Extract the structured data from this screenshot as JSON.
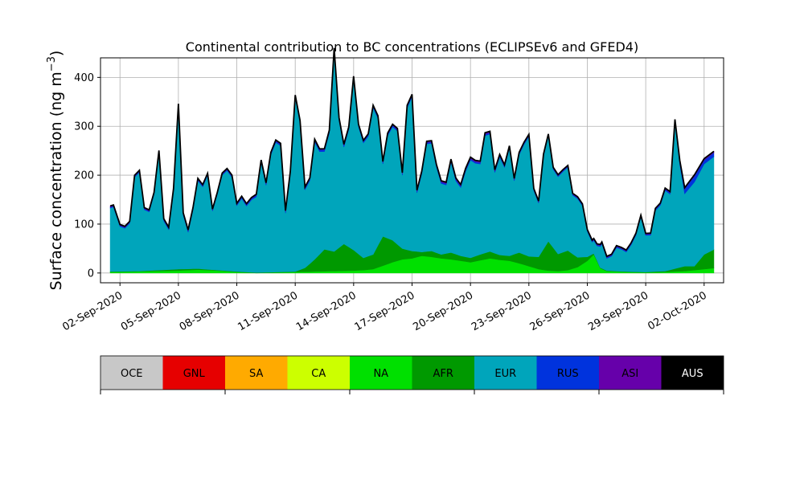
{
  "chart_data": {
    "type": "area",
    "stacked": true,
    "title": "Continental contribution to BC concentrations (ECLIPSEv6 and GFED4)",
    "ylabel": "Surface concentration (ng m",
    "ylabel_unit_exponent": "−3",
    "ylabel_close": ")",
    "xlabel": "",
    "ylim": [
      -20,
      440
    ],
    "xlim": [
      "2020-09-01",
      "2020-10-03"
    ],
    "grid": true,
    "yticks": [
      0,
      100,
      200,
      300,
      400
    ],
    "xtick_dates": [
      "2020-09-02",
      "2020-09-05",
      "2020-09-08",
      "2020-09-11",
      "2020-09-14",
      "2020-09-17",
      "2020-09-20",
      "2020-09-23",
      "2020-09-26",
      "2020-09-29",
      "2020-10-02"
    ],
    "xtick_labels": [
      "02-Sep-2020",
      "05-Sep-2020",
      "08-Sep-2020",
      "11-Sep-2020",
      "14-Sep-2020",
      "17-Sep-2020",
      "20-Sep-2020",
      "23-Sep-2020",
      "26-Sep-2020",
      "29-Sep-2020",
      "02-Oct-2020"
    ],
    "legend": {
      "placement": "bottom colorbar",
      "entries": [
        {
          "label": "OCE",
          "color": "#c8c8c8"
        },
        {
          "label": "GNL",
          "color": "#e60000"
        },
        {
          "label": "SA",
          "color": "#ffaa00"
        },
        {
          "label": "CA",
          "color": "#ccff00"
        },
        {
          "label": "NA",
          "color": "#00e000"
        },
        {
          "label": "AFR",
          "color": "#009900"
        },
        {
          "label": "EUR",
          "color": "#00a5bb"
        },
        {
          "label": "RUS",
          "color": "#0033dd"
        },
        {
          "label": "ASI",
          "color": "#6600aa"
        },
        {
          "label": "AUS",
          "color": "#000000"
        }
      ]
    },
    "series": [
      {
        "name": "NA",
        "color": "#00e000",
        "points": [
          [
            "2020-09-01T12:00",
            2
          ],
          [
            "2020-09-03",
            3
          ],
          [
            "2020-09-04",
            4
          ],
          [
            "2020-09-05",
            5
          ],
          [
            "2020-09-06",
            7
          ],
          [
            "2020-09-07",
            5
          ],
          [
            "2020-09-08",
            2
          ],
          [
            "2020-09-09",
            0
          ],
          [
            "2020-09-10",
            1
          ],
          [
            "2020-09-11",
            2
          ],
          [
            "2020-09-12",
            3
          ],
          [
            "2020-09-13",
            4
          ],
          [
            "2020-09-14",
            5
          ],
          [
            "2020-09-14T12:00",
            6
          ],
          [
            "2020-09-15",
            8
          ],
          [
            "2020-09-15T12:00",
            15
          ],
          [
            "2020-09-16",
            22
          ],
          [
            "2020-09-16T12:00",
            28
          ],
          [
            "2020-09-17",
            30
          ],
          [
            "2020-09-17T12:00",
            35
          ],
          [
            "2020-09-18",
            33
          ],
          [
            "2020-09-18T12:00",
            30
          ],
          [
            "2020-09-19",
            28
          ],
          [
            "2020-09-19T12:00",
            25
          ],
          [
            "2020-09-20",
            22
          ],
          [
            "2020-09-20T12:00",
            26
          ],
          [
            "2020-09-21",
            30
          ],
          [
            "2020-09-21T12:00",
            27
          ],
          [
            "2020-09-22",
            25
          ],
          [
            "2020-09-22T12:00",
            20
          ],
          [
            "2020-09-23",
            14
          ],
          [
            "2020-09-23T12:00",
            8
          ],
          [
            "2020-09-24",
            5
          ],
          [
            "2020-09-24T12:00",
            4
          ],
          [
            "2020-09-25",
            6
          ],
          [
            "2020-09-25T12:00",
            12
          ],
          [
            "2020-09-26",
            25
          ],
          [
            "2020-09-26T08:00",
            38
          ],
          [
            "2020-09-26T16:00",
            10
          ],
          [
            "2020-09-27",
            4
          ],
          [
            "2020-09-28",
            2
          ],
          [
            "2020-09-29",
            1
          ],
          [
            "2020-09-30",
            2
          ],
          [
            "2020-10-01",
            4
          ],
          [
            "2020-10-02",
            8
          ],
          [
            "2020-10-02T12:00",
            10
          ]
        ]
      },
      {
        "name": "AFR",
        "color": "#009900",
        "points": [
          [
            "2020-09-01T12:00",
            1
          ],
          [
            "2020-09-03",
            1
          ],
          [
            "2020-09-04",
            2
          ],
          [
            "2020-09-05",
            3
          ],
          [
            "2020-09-06",
            2
          ],
          [
            "2020-09-07",
            1
          ],
          [
            "2020-09-08",
            1
          ],
          [
            "2020-09-09",
            1
          ],
          [
            "2020-09-10",
            1
          ],
          [
            "2020-09-11",
            1
          ],
          [
            "2020-09-11T12:00",
            8
          ],
          [
            "2020-09-12",
            25
          ],
          [
            "2020-09-12T12:00",
            45
          ],
          [
            "2020-09-13",
            40
          ],
          [
            "2020-09-13T12:00",
            55
          ],
          [
            "2020-09-14",
            42
          ],
          [
            "2020-09-14T12:00",
            25
          ],
          [
            "2020-09-15",
            30
          ],
          [
            "2020-09-15T12:00",
            60
          ],
          [
            "2020-09-16",
            45
          ],
          [
            "2020-09-16T12:00",
            22
          ],
          [
            "2020-09-17",
            15
          ],
          [
            "2020-09-17T12:00",
            8
          ],
          [
            "2020-09-18",
            12
          ],
          [
            "2020-09-18T12:00",
            8
          ],
          [
            "2020-09-19",
            14
          ],
          [
            "2020-09-19T12:00",
            10
          ],
          [
            "2020-09-20",
            9
          ],
          [
            "2020-09-20T12:00",
            12
          ],
          [
            "2020-09-21",
            14
          ],
          [
            "2020-09-21T12:00",
            10
          ],
          [
            "2020-09-22",
            10
          ],
          [
            "2020-09-22T12:00",
            22
          ],
          [
            "2020-09-23",
            20
          ],
          [
            "2020-09-23T12:00",
            25
          ],
          [
            "2020-09-24",
            60
          ],
          [
            "2020-09-24T12:00",
            35
          ],
          [
            "2020-09-25",
            40
          ],
          [
            "2020-09-25T12:00",
            20
          ],
          [
            "2020-09-26",
            8
          ],
          [
            "2020-09-26T08:00",
            2
          ],
          [
            "2020-09-26T16:00",
            1
          ],
          [
            "2020-09-27",
            1
          ],
          [
            "2020-09-28",
            1
          ],
          [
            "2020-09-29",
            1
          ],
          [
            "2020-09-30",
            2
          ],
          [
            "2020-10-01",
            10
          ],
          [
            "2020-10-01T12:00",
            8
          ],
          [
            "2020-10-02",
            30
          ],
          [
            "2020-10-02T12:00",
            38
          ]
        ]
      },
      {
        "name": "EUR",
        "color": "#00a5bb",
        "points": [
          [
            "2020-09-01T12:00",
            130
          ],
          [
            "2020-09-01T16:00",
            132
          ],
          [
            "2020-09-02",
            92
          ],
          [
            "2020-09-02T06:00",
            88
          ],
          [
            "2020-09-02T12:00",
            98
          ],
          [
            "2020-09-02T18:00",
            192
          ],
          [
            "2020-09-03",
            202
          ],
          [
            "2020-09-03T06:00",
            125
          ],
          [
            "2020-09-03T12:00",
            120
          ],
          [
            "2020-09-03T18:00",
            155
          ],
          [
            "2020-09-04",
            240
          ],
          [
            "2020-09-04T06:00",
            100
          ],
          [
            "2020-09-04T12:00",
            82
          ],
          [
            "2020-09-04T18:00",
            160
          ],
          [
            "2020-09-05",
            333
          ],
          [
            "2020-09-05T06:00",
            110
          ],
          [
            "2020-09-05T12:00",
            75
          ],
          [
            "2020-09-05T18:00",
            120
          ],
          [
            "2020-09-06",
            180
          ],
          [
            "2020-09-06T06:00",
            168
          ],
          [
            "2020-09-06T12:00",
            192
          ],
          [
            "2020-09-06T18:00",
            120
          ],
          [
            "2020-09-07",
            155
          ],
          [
            "2020-09-07T06:00",
            195
          ],
          [
            "2020-09-07T12:00",
            205
          ],
          [
            "2020-09-07T18:00",
            192
          ],
          [
            "2020-09-08",
            135
          ],
          [
            "2020-09-08T06:00",
            150
          ],
          [
            "2020-09-08T12:00",
            135
          ],
          [
            "2020-09-08T18:00",
            148
          ],
          [
            "2020-09-09",
            155
          ],
          [
            "2020-09-09T06:00",
            225
          ],
          [
            "2020-09-09T12:00",
            178
          ],
          [
            "2020-09-09T18:00",
            240
          ],
          [
            "2020-09-10",
            265
          ],
          [
            "2020-09-10T06:00",
            258
          ],
          [
            "2020-09-10T12:00",
            120
          ],
          [
            "2020-09-10T18:00",
            200
          ],
          [
            "2020-09-11",
            356
          ],
          [
            "2020-09-11T06:00",
            300
          ],
          [
            "2020-09-11T12:00",
            160
          ],
          [
            "2020-09-11T18:00",
            170
          ],
          [
            "2020-09-12",
            240
          ],
          [
            "2020-09-12T06:00",
            210
          ],
          [
            "2020-09-12T12:00",
            200
          ],
          [
            "2020-09-12T18:00",
            240
          ],
          [
            "2020-09-13",
            410
          ],
          [
            "2020-09-13T06:00",
            260
          ],
          [
            "2020-09-13T12:00",
            198
          ],
          [
            "2020-09-13T18:00",
            240
          ],
          [
            "2020-09-14",
            350
          ],
          [
            "2020-09-14T06:00",
            260
          ],
          [
            "2020-09-14T12:00",
            235
          ],
          [
            "2020-09-14T18:00",
            245
          ],
          [
            "2020-09-15",
            300
          ],
          [
            "2020-09-15T06:00",
            260
          ],
          [
            "2020-09-15T12:00",
            148
          ],
          [
            "2020-09-15T18:00",
            210
          ],
          [
            "2020-09-16",
            232
          ],
          [
            "2020-09-16T06:00",
            232
          ],
          [
            "2020-09-16T12:00",
            150
          ],
          [
            "2020-09-16T18:00",
            290
          ],
          [
            "2020-09-17",
            315
          ],
          [
            "2020-09-17T06:00",
            120
          ],
          [
            "2020-09-17T12:00",
            160
          ],
          [
            "2020-09-17T18:00",
            220
          ],
          [
            "2020-09-18",
            220
          ],
          [
            "2020-09-18T06:00",
            175
          ],
          [
            "2020-09-18T12:00",
            145
          ],
          [
            "2020-09-18T18:00",
            140
          ],
          [
            "2020-09-19",
            185
          ],
          [
            "2020-09-19T06:00",
            150
          ],
          [
            "2020-09-19T12:00",
            140
          ],
          [
            "2020-09-19T18:00",
            175
          ],
          [
            "2020-09-20",
            200
          ],
          [
            "2020-09-20T06:00",
            190
          ],
          [
            "2020-09-20T12:00",
            185
          ],
          [
            "2020-09-20T18:00",
            240
          ],
          [
            "2020-09-21",
            240
          ],
          [
            "2020-09-21T06:00",
            165
          ],
          [
            "2020-09-21T12:00",
            200
          ],
          [
            "2020-09-21T18:00",
            180
          ],
          [
            "2020-09-22",
            220
          ],
          [
            "2020-09-22T06:00",
            150
          ],
          [
            "2020-09-22T12:00",
            200
          ],
          [
            "2020-09-22T18:00",
            225
          ],
          [
            "2020-09-23",
            245
          ],
          [
            "2020-09-23T06:00",
            135
          ],
          [
            "2020-09-23T12:00",
            110
          ],
          [
            "2020-09-23T18:00",
            190
          ],
          [
            "2020-09-24",
            215
          ],
          [
            "2020-09-24T06:00",
            160
          ],
          [
            "2020-09-24T12:00",
            158
          ],
          [
            "2020-09-24T18:00",
            165
          ],
          [
            "2020-09-25",
            170
          ],
          [
            "2020-09-25T06:00",
            120
          ],
          [
            "2020-09-25T12:00",
            120
          ],
          [
            "2020-09-25T18:00",
            105
          ],
          [
            "2020-09-26",
            52
          ],
          [
            "2020-09-26T06:00",
            25
          ],
          [
            "2020-09-26T12:00",
            30
          ],
          [
            "2020-09-26T18:00",
            50
          ],
          [
            "2020-09-27",
            25
          ],
          [
            "2020-09-27T06:00",
            30
          ],
          [
            "2020-09-27T12:00",
            48
          ],
          [
            "2020-09-27T18:00",
            45
          ],
          [
            "2020-09-28",
            40
          ],
          [
            "2020-09-28T06:00",
            55
          ],
          [
            "2020-09-28T12:00",
            75
          ],
          [
            "2020-09-28T18:00",
            112
          ],
          [
            "2020-09-29",
            75
          ],
          [
            "2020-09-29T06:00",
            75
          ],
          [
            "2020-09-29T12:00",
            125
          ],
          [
            "2020-09-29T18:00",
            135
          ],
          [
            "2020-09-30",
            165
          ],
          [
            "2020-09-30T06:00",
            155
          ],
          [
            "2020-09-30T12:00",
            300
          ],
          [
            "2020-09-30T18:00",
            210
          ],
          [
            "2020-10-01",
            148
          ],
          [
            "2020-10-01T06:00",
            160
          ],
          [
            "2020-10-01T12:00",
            172
          ],
          [
            "2020-10-02",
            185
          ],
          [
            "2020-10-02T12:00",
            190
          ]
        ]
      },
      {
        "name": "RUS",
        "color": "#0033dd",
        "points": [
          [
            "2020-09-01T12:00",
            2
          ],
          [
            "2020-09-03",
            2
          ],
          [
            "2020-09-05",
            3
          ],
          [
            "2020-09-07",
            2
          ],
          [
            "2020-09-09",
            3
          ],
          [
            "2020-09-11",
            3
          ],
          [
            "2020-09-13",
            4
          ],
          [
            "2020-09-15",
            3
          ],
          [
            "2020-09-17",
            3
          ],
          [
            "2020-09-19",
            3
          ],
          [
            "2020-09-21",
            3
          ],
          [
            "2020-09-23",
            2
          ],
          [
            "2020-09-25",
            2
          ],
          [
            "2020-09-27",
            2
          ],
          [
            "2020-09-29",
            2
          ],
          [
            "2020-09-30T12:00",
            3
          ],
          [
            "2020-10-01",
            10
          ],
          [
            "2020-10-01T12:00",
            12
          ],
          [
            "2020-10-02",
            8
          ],
          [
            "2020-10-02T12:00",
            8
          ]
        ]
      },
      {
        "name": "ASI",
        "color": "#6600aa",
        "points": [
          [
            "2020-09-01T12:00",
            2
          ],
          [
            "2020-09-05",
            2
          ],
          [
            "2020-09-10",
            2
          ],
          [
            "2020-09-15",
            2
          ],
          [
            "2020-09-20",
            3
          ],
          [
            "2020-09-25",
            2
          ],
          [
            "2020-09-30",
            2
          ],
          [
            "2020-10-02T12:00",
            3
          ]
        ]
      }
    ]
  }
}
